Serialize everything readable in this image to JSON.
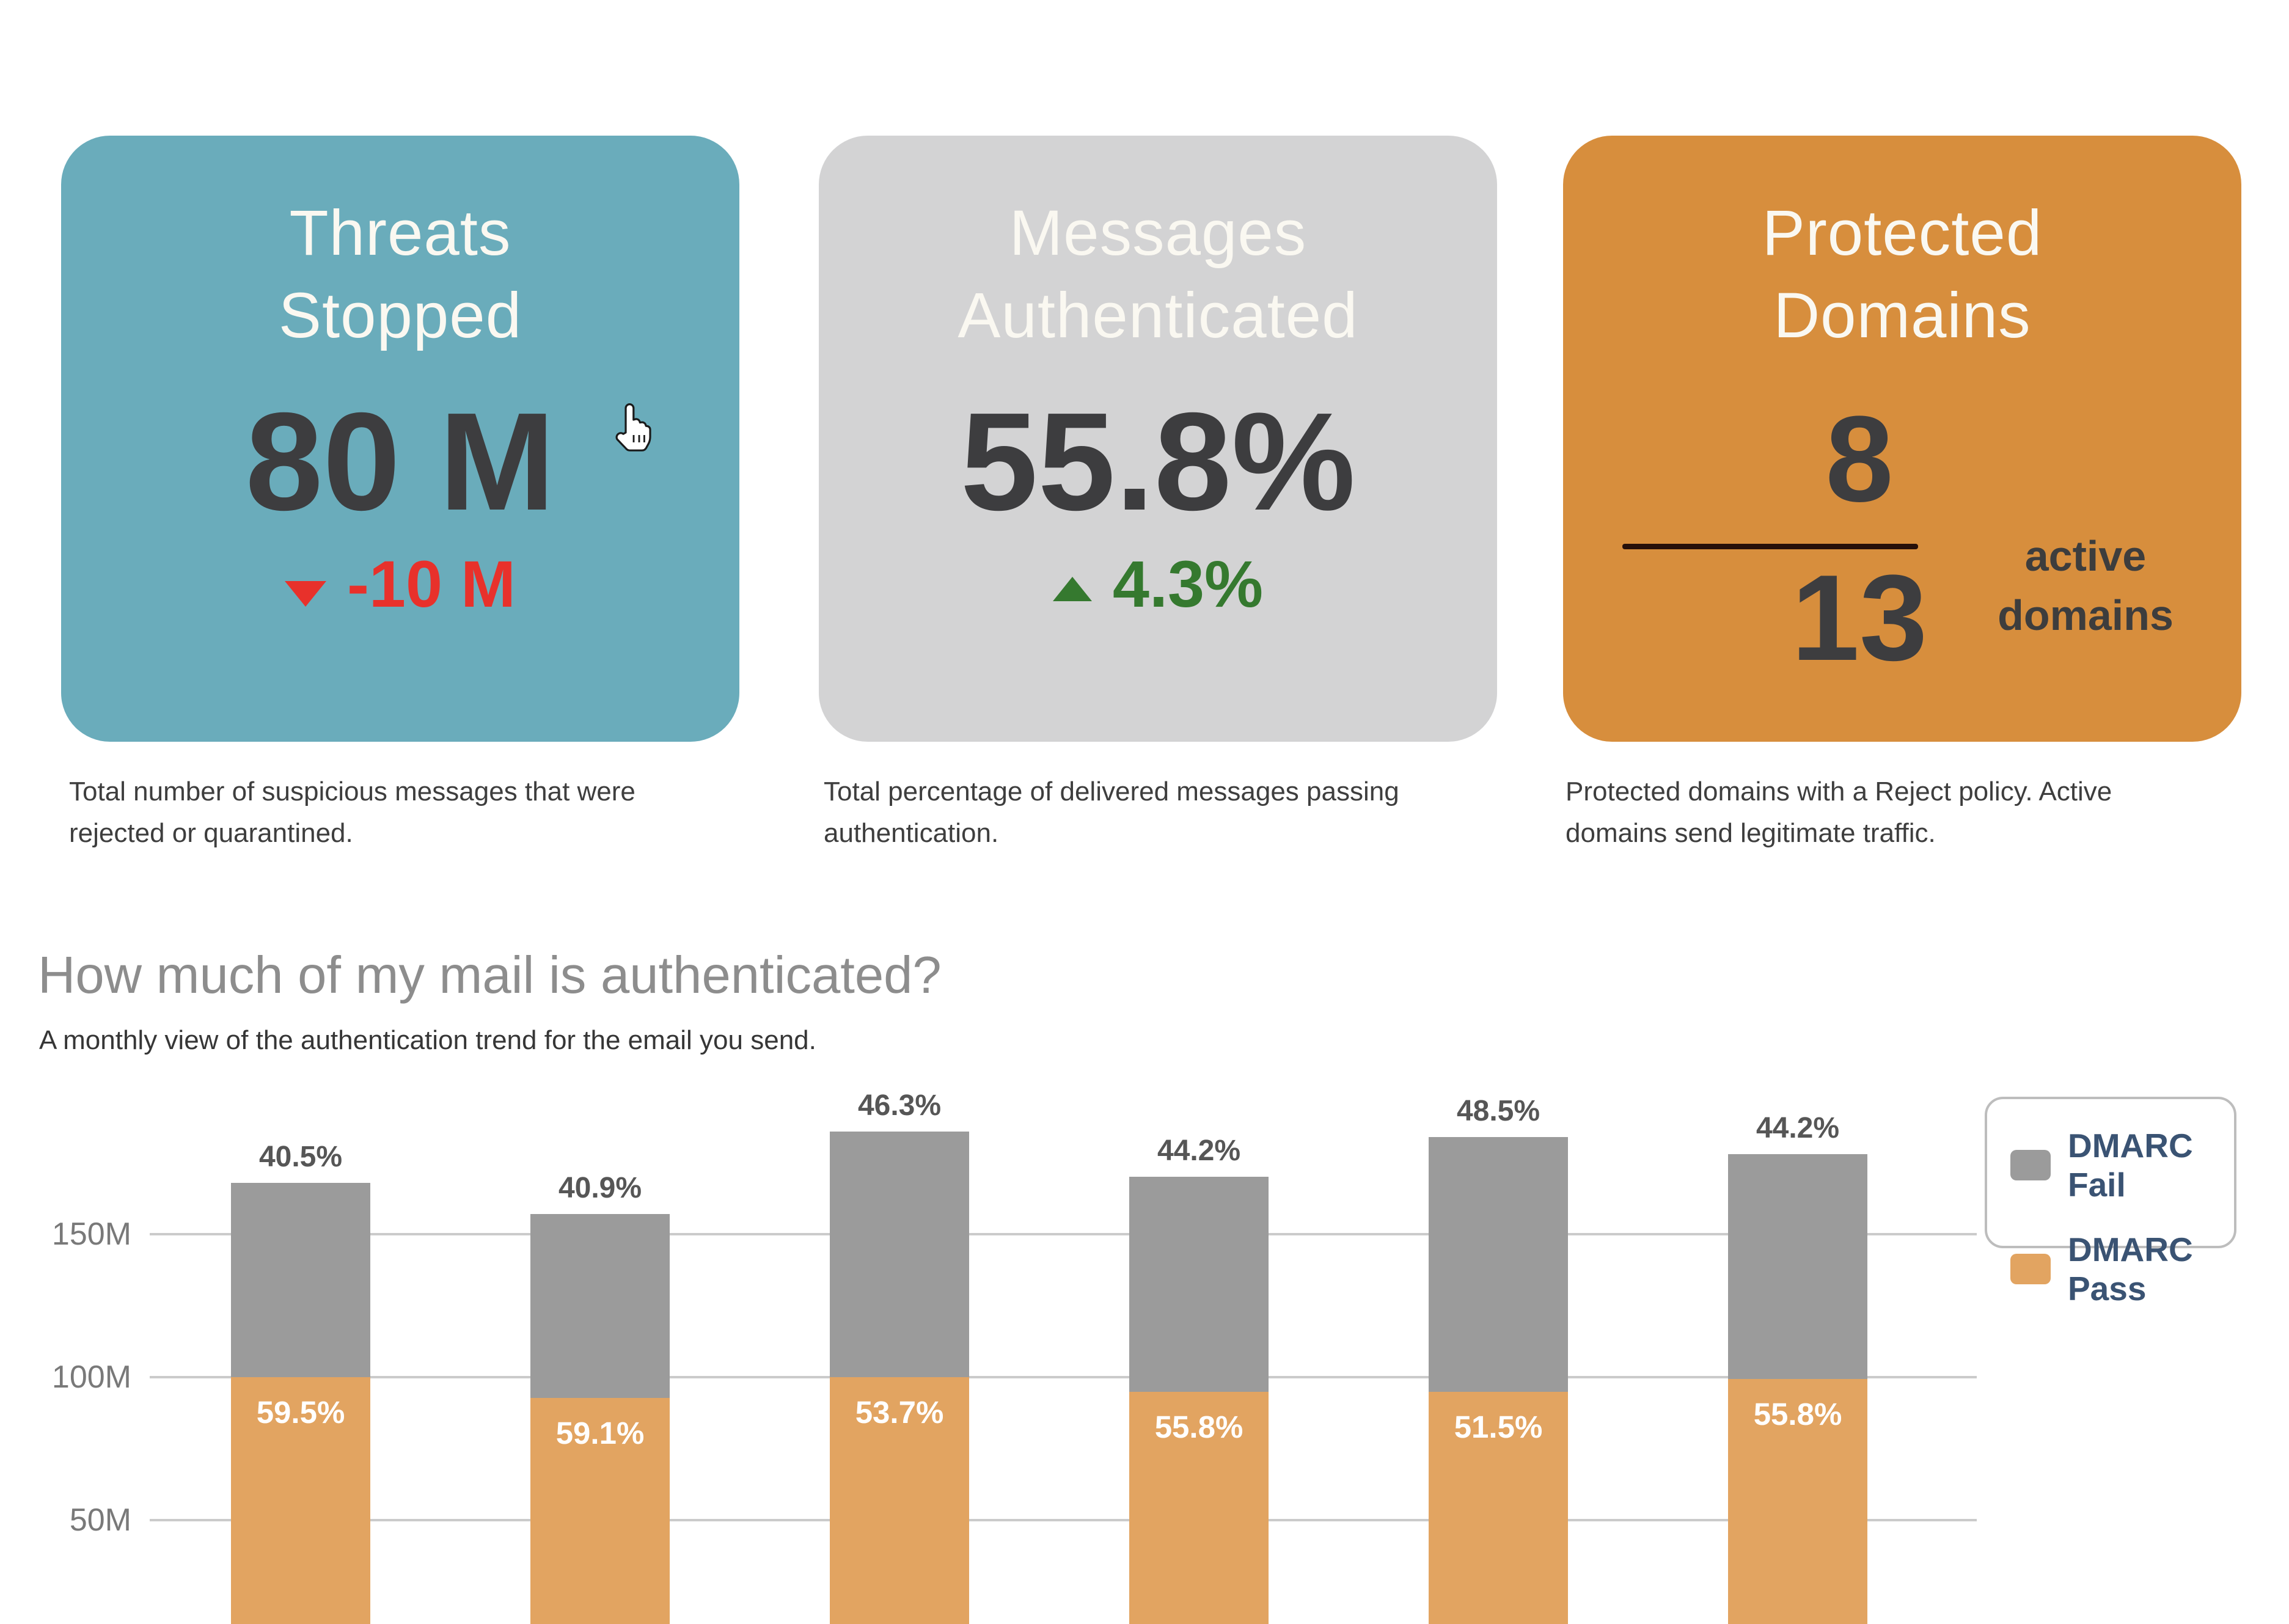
{
  "cards": [
    {
      "title_line1": "Threats",
      "title_line2": "Stopped",
      "value": "80 M",
      "delta": "-10 M",
      "delta_direction": "down",
      "delta_color": "#e8312b",
      "bg": "#6aacbb",
      "description": "Total number of suspicious messages that were rejected or quarantined."
    },
    {
      "title_line1": "Messages",
      "title_line2": "Authenticated",
      "value": "55.8%",
      "delta": "4.3%",
      "delta_direction": "up",
      "delta_color": "#35792f",
      "bg": "#d3d3d4",
      "description": "Total percentage of delivered messages passing authentication."
    },
    {
      "title_line1": "Protected",
      "title_line2": "Domains",
      "numerator": "8",
      "denominator": "13",
      "side_label_line1": "active",
      "side_label_line2": "domains",
      "bg": "#d78e3d",
      "description": "Protected domains with a Reject policy. Active domains send legitimate traffic."
    }
  ],
  "section": {
    "heading": "How much of my mail is authenticated?",
    "subheading": "A monthly view of the authentication trend for the email you send."
  },
  "chart_data": {
    "type": "bar",
    "stacked": true,
    "title": "How much of my mail is authenticated?",
    "series": [
      {
        "name": "DMARC Pass",
        "color": "#e2a461",
        "values_M": [
          100,
          92.8,
          99.9,
          94.9,
          94.8,
          99.3
        ],
        "pct_labels": [
          "59.5%",
          "59.1%",
          "53.7%",
          "55.8%",
          "51.5%",
          "55.8%"
        ]
      },
      {
        "name": "DMARC Fail",
        "color": "#9b9b9b",
        "values_M": [
          68,
          64.2,
          86.1,
          75.1,
          89.2,
          78.7
        ],
        "pct_labels": [
          "40.5%",
          "40.9%",
          "46.3%",
          "44.2%",
          "48.5%",
          "44.2%"
        ]
      }
    ],
    "totals_M": [
      168,
      157,
      186,
      170,
      184,
      178
    ],
    "y_axis": {
      "unit": "M",
      "gridlines": [
        {
          "label": "50M",
          "value": 50
        },
        {
          "label": "100M",
          "value": 100
        },
        {
          "label": "150M",
          "value": 150
        }
      ]
    },
    "x_axis_labels_visible": false,
    "bottom_cropped": true,
    "legend_position": "top-right"
  },
  "legend": {
    "items": [
      {
        "label": "DMARC Fail",
        "color": "#9b9b9b"
      },
      {
        "label": "DMARC Pass",
        "color": "#e2a461"
      }
    ]
  },
  "cursor": {
    "type": "hand-pointer"
  },
  "colors": {
    "background": "#ffffff",
    "card_teal": "#6aacbb",
    "card_gray": "#d3d3d4",
    "card_orange": "#d78e3d",
    "card_title_text": "#faf8f1",
    "big_number_text": "#3d3d3f",
    "negative_red": "#e8312b",
    "positive_green": "#35792f",
    "bar_fail_gray": "#9b9b9b",
    "bar_pass_orange": "#e2a461",
    "gridline": "#cbcbcb",
    "legend_text": "#3a5373"
  }
}
